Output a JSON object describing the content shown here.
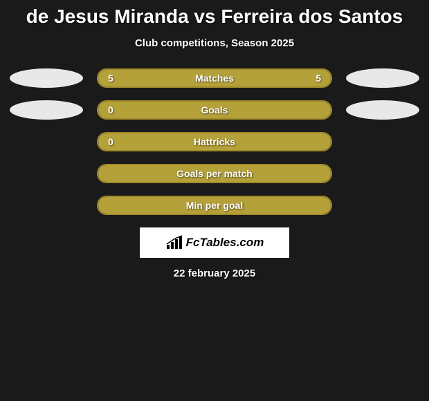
{
  "title": "de Jesus Miranda vs Ferreira dos Santos",
  "subtitle": "Club competitions, Season 2025",
  "date": "22 february 2025",
  "logo_text": "FcTables.com",
  "colors": {
    "bar_border": "#a08a2a",
    "bar_fill": "#b5a13a",
    "ellipse": "#e8e8e8",
    "background": "#1a1a1a"
  },
  "rows": [
    {
      "label": "Matches",
      "left_value": "5",
      "right_value": "5",
      "fill_left_pct": 0,
      "fill_width_pct": 100,
      "show_ellipses": true,
      "show_left_val": true,
      "show_right_val": true
    },
    {
      "label": "Goals",
      "left_value": "0",
      "right_value": "",
      "fill_left_pct": 0,
      "fill_width_pct": 100,
      "show_ellipses": true,
      "show_left_val": true,
      "show_right_val": false
    },
    {
      "label": "Hattricks",
      "left_value": "0",
      "right_value": "",
      "fill_left_pct": 0,
      "fill_width_pct": 100,
      "show_ellipses": false,
      "show_left_val": true,
      "show_right_val": false
    },
    {
      "label": "Goals per match",
      "left_value": "",
      "right_value": "",
      "fill_left_pct": 0,
      "fill_width_pct": 100,
      "show_ellipses": false,
      "show_left_val": false,
      "show_right_val": false
    },
    {
      "label": "Min per goal",
      "left_value": "",
      "right_value": "",
      "fill_left_pct": 0,
      "fill_width_pct": 100,
      "show_ellipses": false,
      "show_left_val": false,
      "show_right_val": false
    }
  ]
}
